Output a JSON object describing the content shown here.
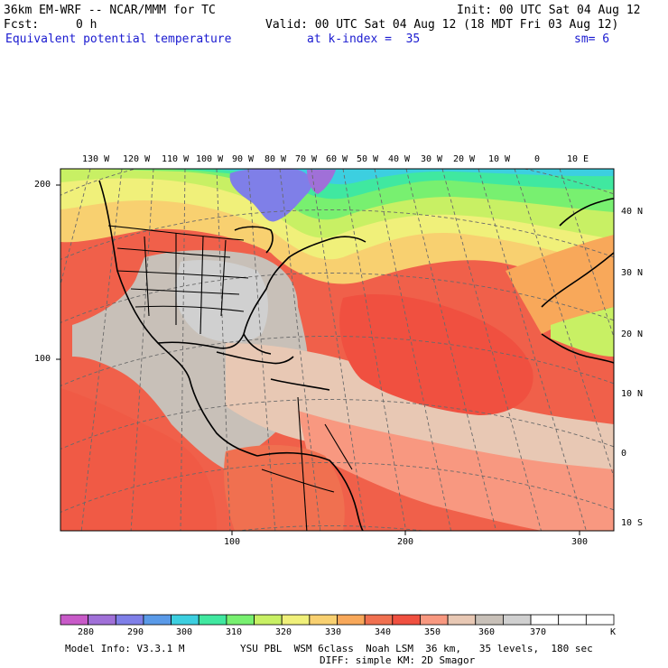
{
  "header": {
    "model_title": "36km EM-WRF -- NCAR/MMM for TC",
    "init": "Init: 00 UTC Sat 04 Aug 12",
    "fcst_label": "Fcst:",
    "fcst_value": "0 h",
    "valid": "Valid: 00 UTC Sat 04 Aug 12 (18 MDT Fri 03 Aug 12)",
    "field_name": "Equivalent potential temperature",
    "level": "at k-index =  35",
    "smoothing": "sm= 6"
  },
  "map": {
    "lon_labels": [
      "130 W",
      "120 W",
      "110 W",
      "100 W",
      "90 W",
      "80 W",
      "70 W",
      "60 W",
      "50 W",
      "40 W",
      "30 W",
      "20 W",
      "10 W",
      "0",
      "10 E"
    ],
    "lat_labels": [
      "40 N",
      "30 N",
      "20 N",
      "10 N",
      "0",
      "10 S"
    ],
    "y_axis_ticks": [
      "200",
      "100"
    ],
    "x_axis_ticks": [
      "100",
      "200",
      "300"
    ]
  },
  "colorbar": {
    "colors": [
      "#c85ac8",
      "#a070d8",
      "#7f7fe8",
      "#5a9ae8",
      "#3ccfe0",
      "#40e8a0",
      "#78f070",
      "#c8f064",
      "#f0f07a",
      "#f8d070",
      "#f8a85a",
      "#f07050",
      "#f05040",
      "#f89880",
      "#e8c8b4",
      "#c8c0b8",
      "#d0d0d0",
      "#ffffff",
      "#ffffff",
      "#ffffff"
    ],
    "tick_labels": [
      "280",
      "290",
      "300",
      "310",
      "320",
      "330",
      "340",
      "350",
      "360",
      "370"
    ],
    "unit": "K"
  },
  "footer": {
    "model_info": "Model Info: V3.3.1 M",
    "physics1": "YSU PBL  WSM 6class  Noah LSM  36 km,   35 levels,  180 sec",
    "physics2": "DIFF: simple KM: 2D Smagor"
  }
}
